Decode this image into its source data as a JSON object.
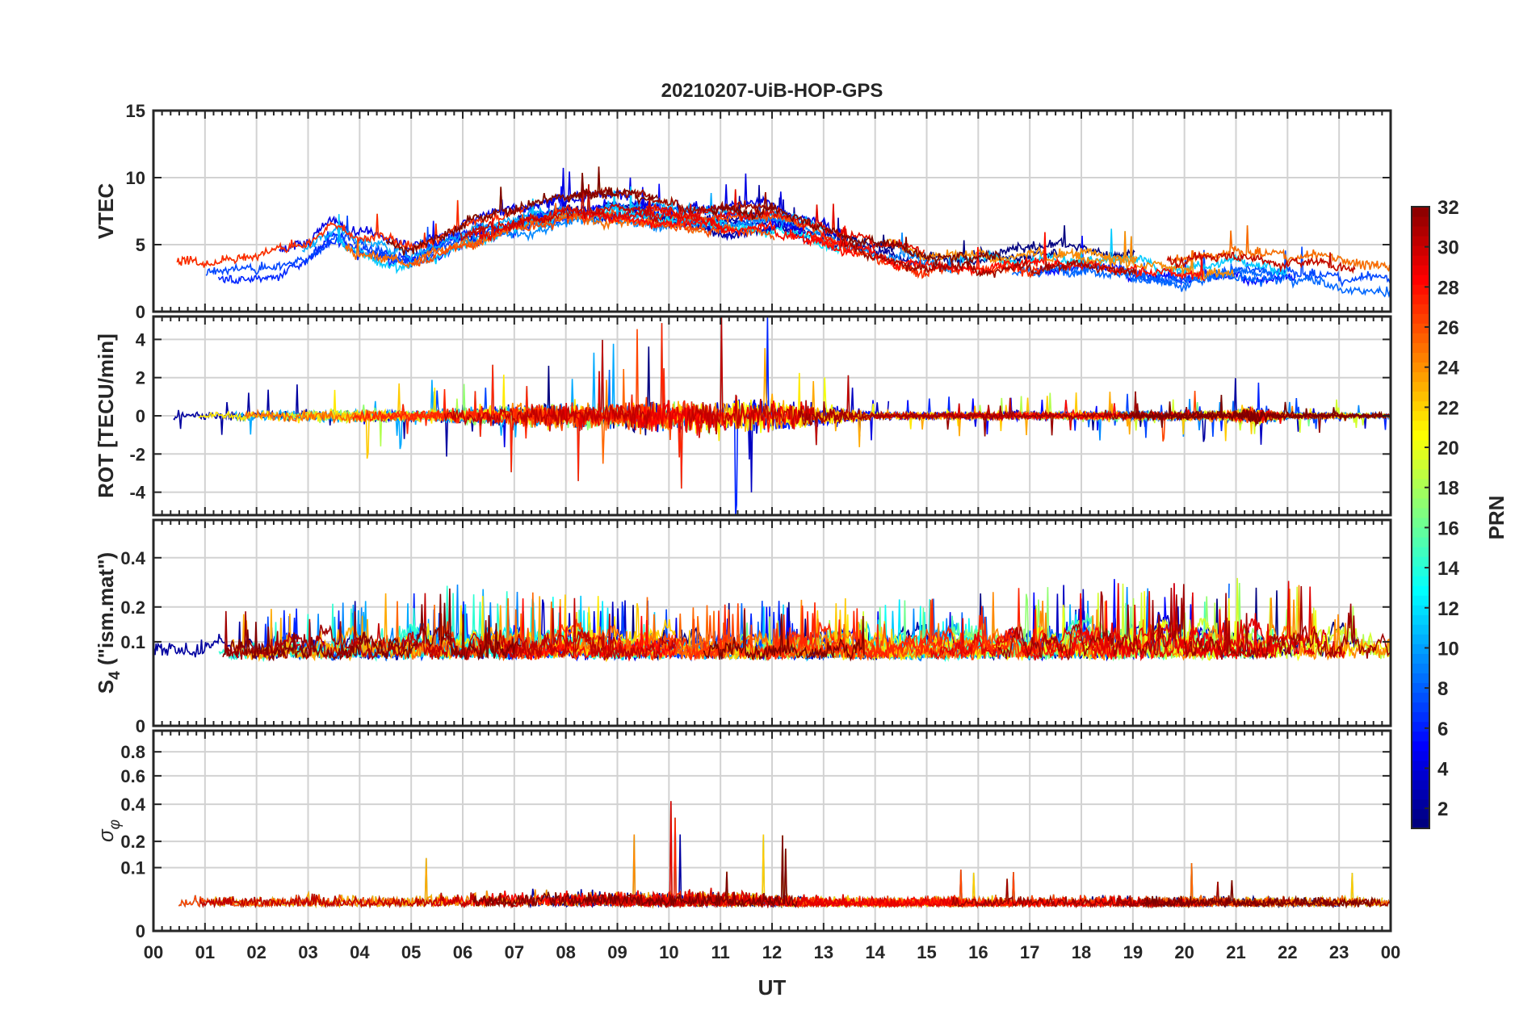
{
  "chart_data": {
    "title": "20210207-UiB-HOP-GPS",
    "type": "line",
    "xlabel": "UT",
    "x_ticks": [
      "00",
      "01",
      "02",
      "03",
      "04",
      "05",
      "06",
      "07",
      "08",
      "09",
      "10",
      "11",
      "12",
      "13",
      "14",
      "15",
      "16",
      "17",
      "18",
      "19",
      "20",
      "21",
      "22",
      "23",
      "00"
    ],
    "xlim": [
      0,
      24
    ],
    "grid": true,
    "colormap": "jet",
    "colorbar": {
      "label": "PRN",
      "range": [
        1,
        32
      ],
      "ticks": [
        "32",
        "30",
        "28",
        "26",
        "24",
        "22",
        "20",
        "18",
        "16",
        "14",
        "12",
        "10",
        "8",
        "6",
        "4",
        "2"
      ],
      "tick_values": [
        32,
        30,
        28,
        26,
        24,
        22,
        20,
        18,
        16,
        14,
        12,
        10,
        8,
        6,
        4,
        2
      ]
    },
    "panels": [
      {
        "id": "vtec",
        "ylabel": "VTEC",
        "ylim": [
          0,
          15
        ],
        "yticks": [
          0,
          5,
          10,
          15
        ],
        "ytick_labels": [
          "0",
          "5",
          "10",
          "15"
        ],
        "profile": [
          [
            0,
            3.5
          ],
          [
            1,
            3.2
          ],
          [
            2,
            3.3
          ],
          [
            3,
            4.5
          ],
          [
            3.5,
            6.2
          ],
          [
            4,
            5.2
          ],
          [
            5,
            4.2
          ],
          [
            6,
            6.0
          ],
          [
            7,
            7.0
          ],
          [
            8,
            7.8
          ],
          [
            9,
            8.0
          ],
          [
            10,
            7.5
          ],
          [
            11,
            7.0
          ],
          [
            12,
            7.0
          ],
          [
            13,
            5.8
          ],
          [
            14,
            4.8
          ],
          [
            15,
            3.8
          ],
          [
            16,
            3.5
          ],
          [
            17,
            3.8
          ],
          [
            18,
            4.0
          ],
          [
            19,
            3.6
          ],
          [
            20,
            3.0
          ],
          [
            21,
            3.5
          ],
          [
            22,
            3.2
          ],
          [
            23,
            2.8
          ],
          [
            24,
            2.5
          ]
        ],
        "noise": 0.9,
        "spike_prob": 0.01
      },
      {
        "id": "rot",
        "ylabel": "ROT [TECU/min]",
        "ylim": [
          -5.2,
          5.2
        ],
        "yticks": [
          -4,
          -2,
          0,
          2,
          4
        ],
        "ytick_labels": [
          "-4",
          "-2",
          "0",
          "2",
          "4"
        ],
        "profile": [
          [
            0,
            0
          ],
          [
            24,
            0
          ]
        ],
        "activity": [
          [
            0,
            0.35
          ],
          [
            3,
            0.45
          ],
          [
            4,
            0.6
          ],
          [
            5,
            0.4
          ],
          [
            7.5,
            1.0
          ],
          [
            10,
            1.3
          ],
          [
            12,
            1.4
          ],
          [
            13,
            0.8
          ],
          [
            14,
            0.3
          ],
          [
            20.8,
            0.35
          ],
          [
            21.3,
            0.8
          ],
          [
            22,
            0.25
          ],
          [
            24,
            0.2
          ]
        ],
        "noise": 1.0,
        "spike_prob": 0.015
      },
      {
        "id": "s4",
        "ylabel": "S4 (\"ism.mat\")",
        "ylabel_main": "S",
        "ylabel_sub": "4",
        "ylabel_tail": " (\"ism.mat\")",
        "scale": "sqrt",
        "ylim": [
          0,
          0.6
        ],
        "yticks": [
          0,
          0.1,
          0.2,
          0.4
        ],
        "ytick_labels": [
          "0",
          "0.1",
          "0.2",
          "0.4"
        ],
        "profile": [
          [
            0,
            0.1
          ],
          [
            24,
            0.1
          ]
        ],
        "activity": [
          [
            0,
            0.25
          ],
          [
            3,
            0.3
          ],
          [
            6,
            0.45
          ],
          [
            8,
            0.4
          ],
          [
            11,
            0.3
          ],
          [
            13,
            0.35
          ],
          [
            15,
            0.35
          ],
          [
            17,
            0.45
          ],
          [
            19,
            0.5
          ],
          [
            21,
            0.5
          ],
          [
            23,
            0.45
          ],
          [
            24,
            0.35
          ]
        ],
        "noise": 0.1,
        "spike_prob": 0.03
      },
      {
        "id": "sigma_phi",
        "ylabel": "σ φ",
        "ylabel_main": "σ",
        "ylabel_sub": "φ",
        "scale": "sqrt",
        "ylim": [
          0,
          1.0
        ],
        "yticks": [
          0,
          0.1,
          0.2,
          0.4,
          0.6,
          0.8
        ],
        "ytick_labels": [
          "0",
          "0.1",
          "0.2",
          "0.4",
          "0.6",
          "0.8"
        ],
        "profile": [
          [
            0,
            0.02
          ],
          [
            24,
            0.02
          ]
        ],
        "activity": [
          [
            0,
            0.2
          ],
          [
            3.5,
            0.5
          ],
          [
            5,
            0.3
          ],
          [
            7.5,
            1.0
          ],
          [
            11,
            1.0
          ],
          [
            12.5,
            0.4
          ],
          [
            14,
            0.15
          ],
          [
            21,
            0.2
          ],
          [
            24,
            0.15
          ]
        ],
        "noise": 0.02,
        "spike_prob": 0.004
      }
    ],
    "series_count": 32,
    "series_note": "one trace per PRN satellite, colored by PRN on the colorbar"
  }
}
